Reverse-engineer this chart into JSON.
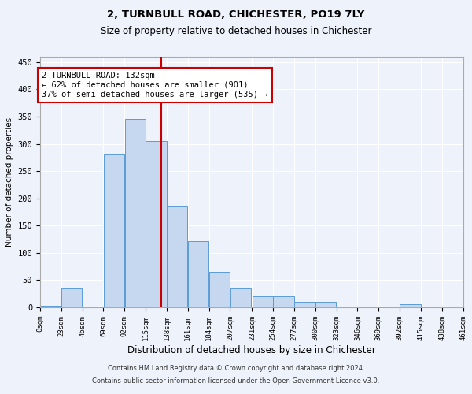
{
  "title1": "2, TURNBULL ROAD, CHICHESTER, PO19 7LY",
  "title2": "Size of property relative to detached houses in Chichester",
  "xlabel": "Distribution of detached houses by size in Chichester",
  "ylabel": "Number of detached properties",
  "bar_color": "#c5d8f0",
  "bar_edge_color": "#5b9bd5",
  "annotation_box_color": "#ffffff",
  "annotation_box_edge": "#cc0000",
  "vline_color": "#cc0000",
  "property_size": 132,
  "bin_edges": [
    0,
    23,
    46,
    69,
    92,
    115,
    138,
    161,
    184,
    207,
    231,
    254,
    277,
    300,
    323,
    346,
    369,
    392,
    415,
    438,
    461
  ],
  "bar_heights": [
    3,
    35,
    0,
    280,
    345,
    305,
    185,
    122,
    65,
    35,
    20,
    20,
    10,
    10,
    0,
    0,
    0,
    6,
    2,
    0
  ],
  "annotation_line1": "2 TURNBULL ROAD: 132sqm",
  "annotation_line2": "← 62% of detached houses are smaller (901)",
  "annotation_line3": "37% of semi-detached houses are larger (535) →",
  "footer1": "Contains HM Land Registry data © Crown copyright and database right 2024.",
  "footer2": "Contains public sector information licensed under the Open Government Licence v3.0.",
  "ylim": [
    0,
    460
  ],
  "yticks": [
    0,
    50,
    100,
    150,
    200,
    250,
    300,
    350,
    400,
    450
  ],
  "background_color": "#eef2fb",
  "plot_bg_color": "#eef2fb"
}
